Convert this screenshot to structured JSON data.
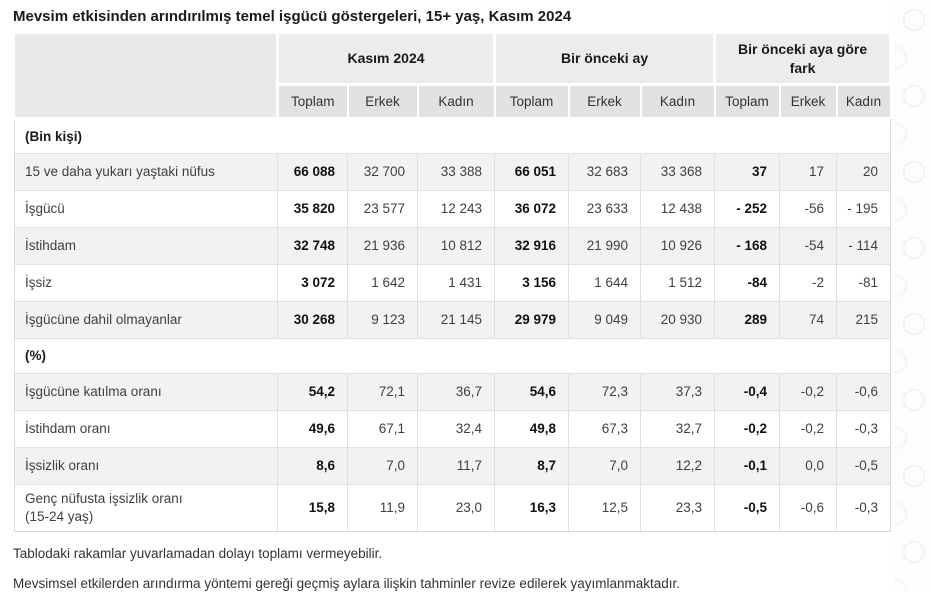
{
  "title": "Mevsim etkisinden arındırılmış temel işgücü göstergeleri, 15+ yaş, Kasım 2024",
  "colors": {
    "corner_bg": "#e9e9e9",
    "group_header_bg": "#ececec",
    "sub_header_bg": "#e2e2e2",
    "stripe_bg": "#f2f2f2",
    "border": "#d9d9d9",
    "text": "#404040",
    "bold_text": "#111111"
  },
  "table": {
    "col_groups": [
      {
        "label": "Kasım 2024"
      },
      {
        "label": "Bir önceki ay"
      },
      {
        "label": "Bir önceki aya göre fark"
      }
    ],
    "sub_headers": [
      "Toplam",
      "Erkek",
      "Kadın",
      "Toplam",
      "Erkek",
      "Kadın",
      "Toplam",
      "Erkek",
      "Kadın"
    ],
    "sections": [
      {
        "header": "(Bin kişi)",
        "rows": [
          {
            "label": "15 ve daha yukarı yaştaki nüfus",
            "values": [
              "66 088",
              "32 700",
              "33 388",
              "66 051",
              "32 683",
              "33 368",
              "37",
              "17",
              "20"
            ]
          },
          {
            "label": "İşgücü",
            "values": [
              "35 820",
              "23 577",
              "12 243",
              "36 072",
              "23 633",
              "12 438",
              "- 252",
              "-56",
              "- 195"
            ]
          },
          {
            "label": "İstihdam",
            "values": [
              "32 748",
              "21 936",
              "10 812",
              "32 916",
              "21 990",
              "10 926",
              "- 168",
              "-54",
              "- 114"
            ]
          },
          {
            "label": "İşsiz",
            "values": [
              "3 072",
              "1 642",
              "1 431",
              "3 156",
              "1 644",
              "1 512",
              "-84",
              "-2",
              "-81"
            ]
          },
          {
            "label": "İşgücüne dahil olmayanlar",
            "values": [
              "30 268",
              "9 123",
              "21 145",
              "29 979",
              "9 049",
              "20 930",
              "289",
              "74",
              "215"
            ]
          }
        ]
      },
      {
        "header": "(%)",
        "rows": [
          {
            "label": "İşgücüne katılma oranı",
            "values": [
              "54,2",
              "72,1",
              "36,7",
              "54,6",
              "72,3",
              "37,3",
              "-0,4",
              "-0,2",
              "-0,6"
            ]
          },
          {
            "label": "İstihdam oranı",
            "values": [
              "49,6",
              "67,1",
              "32,4",
              "49,8",
              "67,3",
              "32,7",
              "-0,2",
              "-0,2",
              "-0,3"
            ]
          },
          {
            "label": "İşsizlik oranı",
            "values": [
              "8,6",
              "7,0",
              "11,7",
              "8,7",
              "7,0",
              "12,2",
              "-0,1",
              "0,0",
              "-0,5"
            ]
          },
          {
            "label": "Genç nüfusta işsizlik oranı",
            "label2": "(15-24 yaş)",
            "values": [
              "15,8",
              "11,9",
              "23,0",
              "16,3",
              "12,5",
              "23,3",
              "-0,5",
              "-0,6",
              "-0,3"
            ]
          }
        ]
      }
    ]
  },
  "footnotes": [
    "Tablodaki rakamlar yuvarlamadan dolayı toplamı vermeyebilir.",
    "Mevsimsel etkilerden arındırma yöntemi gereği geçmiş aylara ilişkin tahminler revize edilerek yayımlanmaktadır."
  ]
}
